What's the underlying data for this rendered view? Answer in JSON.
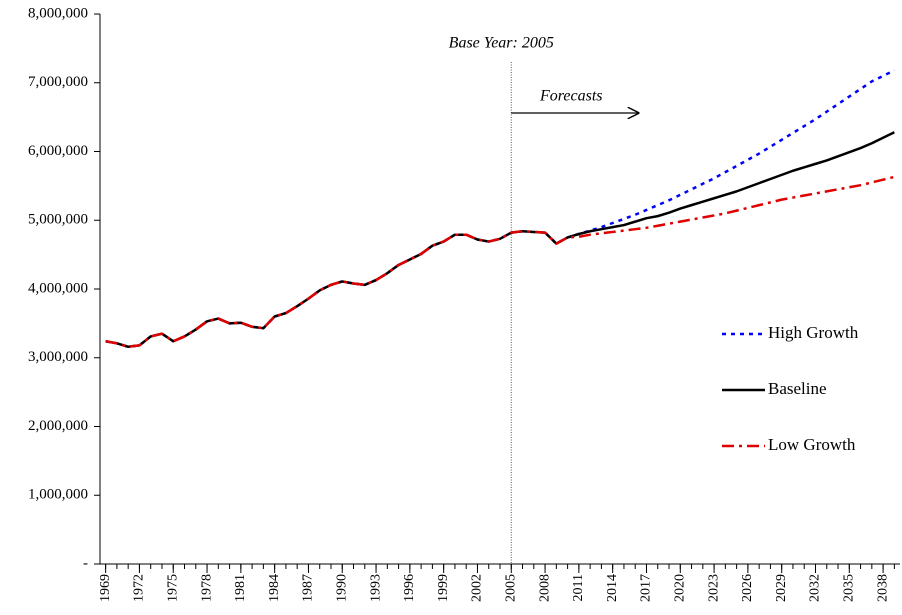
{
  "chart_data": {
    "type": "line",
    "annotations": {
      "base_year": "Base Year: 2005",
      "forecasts": "Forecasts"
    },
    "vline_x": 2005,
    "x": [
      1969,
      1970,
      1971,
      1972,
      1973,
      1974,
      1975,
      1976,
      1977,
      1978,
      1979,
      1980,
      1981,
      1982,
      1983,
      1984,
      1985,
      1986,
      1987,
      1988,
      1989,
      1990,
      1991,
      1992,
      1993,
      1994,
      1995,
      1996,
      1997,
      1998,
      1999,
      2000,
      2001,
      2002,
      2003,
      2004,
      2005,
      2006,
      2007,
      2008,
      2009,
      2010,
      2011,
      2012,
      2013,
      2014,
      2015,
      2016,
      2017,
      2018,
      2019,
      2020,
      2021,
      2022,
      2023,
      2024,
      2025,
      2026,
      2027,
      2028,
      2029,
      2030,
      2031,
      2032,
      2033,
      2034,
      2035,
      2036,
      2037,
      2038,
      2039
    ],
    "xlim": [
      1968.5,
      2039.5
    ],
    "xticks": [
      1969,
      1972,
      1975,
      1978,
      1981,
      1984,
      1987,
      1990,
      1993,
      1996,
      1999,
      2002,
      2005,
      2008,
      2011,
      2014,
      2017,
      2020,
      2023,
      2026,
      2029,
      2032,
      2035,
      2038
    ],
    "ylim": [
      0,
      8000000
    ],
    "yticks": [
      {
        "value": 0,
        "label": "-"
      },
      {
        "value": 1000000,
        "label": "1,000,000"
      },
      {
        "value": 2000000,
        "label": "2,000,000"
      },
      {
        "value": 3000000,
        "label": "3,000,000"
      },
      {
        "value": 4000000,
        "label": "4,000,000"
      },
      {
        "value": 5000000,
        "label": "5,000,000"
      },
      {
        "value": 6000000,
        "label": "6,000,000"
      },
      {
        "value": 7000000,
        "label": "7,000,000"
      },
      {
        "value": 8000000,
        "label": "8,000,000"
      }
    ],
    "legend": "right",
    "series": [
      {
        "name": "High Growth",
        "color": "#0000ff",
        "dash": "dotted",
        "values": [
          3240000,
          3210000,
          3160000,
          3180000,
          3310000,
          3350000,
          3240000,
          3310000,
          3410000,
          3530000,
          3570000,
          3500000,
          3510000,
          3450000,
          3430000,
          3600000,
          3650000,
          3750000,
          3860000,
          3980000,
          4060000,
          4110000,
          4080000,
          4060000,
          4130000,
          4230000,
          4350000,
          4430000,
          4510000,
          4630000,
          4690000,
          4790000,
          4790000,
          4720000,
          4690000,
          4730000,
          4820000,
          4840000,
          4830000,
          4820000,
          4660000,
          4750000,
          4800000,
          4850000,
          4900000,
          4960000,
          5020000,
          5080000,
          5150000,
          5220000,
          5290000,
          5370000,
          5450000,
          5530000,
          5610000,
          5700000,
          5790000,
          5880000,
          5970000,
          6070000,
          6170000,
          6270000,
          6370000,
          6470000,
          6580000,
          6690000,
          6800000,
          6910000,
          7020000,
          7100000,
          7180000
        ]
      },
      {
        "name": "Baseline",
        "color": "#000000",
        "dash": "solid",
        "values": [
          3240000,
          3210000,
          3160000,
          3180000,
          3310000,
          3350000,
          3240000,
          3310000,
          3410000,
          3530000,
          3570000,
          3500000,
          3510000,
          3450000,
          3430000,
          3600000,
          3650000,
          3750000,
          3860000,
          3980000,
          4060000,
          4110000,
          4080000,
          4060000,
          4130000,
          4230000,
          4350000,
          4430000,
          4510000,
          4630000,
          4690000,
          4790000,
          4790000,
          4720000,
          4690000,
          4730000,
          4820000,
          4840000,
          4830000,
          4820000,
          4660000,
          4750000,
          4800000,
          4840000,
          4870000,
          4900000,
          4930000,
          4980000,
          5030000,
          5060000,
          5110000,
          5170000,
          5220000,
          5270000,
          5320000,
          5370000,
          5420000,
          5480000,
          5540000,
          5600000,
          5660000,
          5720000,
          5770000,
          5820000,
          5870000,
          5930000,
          5990000,
          6050000,
          6120000,
          6200000,
          6280000
        ]
      },
      {
        "name": "Low Growth",
        "color": "#e00000",
        "dash": "dashdot",
        "values": [
          3240000,
          3210000,
          3160000,
          3180000,
          3310000,
          3350000,
          3240000,
          3310000,
          3410000,
          3530000,
          3570000,
          3500000,
          3510000,
          3450000,
          3430000,
          3600000,
          3650000,
          3750000,
          3860000,
          3980000,
          4060000,
          4110000,
          4080000,
          4060000,
          4130000,
          4230000,
          4350000,
          4430000,
          4510000,
          4630000,
          4690000,
          4790000,
          4790000,
          4720000,
          4690000,
          4730000,
          4820000,
          4840000,
          4830000,
          4820000,
          4660000,
          4750000,
          4760000,
          4790000,
          4810000,
          4830000,
          4850000,
          4870000,
          4890000,
          4920000,
          4950000,
          4980000,
          5010000,
          5040000,
          5070000,
          5100000,
          5140000,
          5180000,
          5220000,
          5260000,
          5300000,
          5330000,
          5360000,
          5390000,
          5420000,
          5450000,
          5480000,
          5510000,
          5550000,
          5590000,
          5630000
        ]
      }
    ]
  }
}
